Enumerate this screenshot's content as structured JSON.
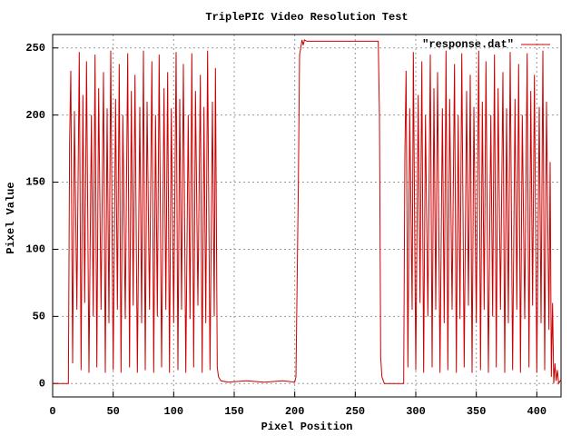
{
  "chart_data": {
    "type": "line",
    "title": "TriplePIC Video Resolution Test",
    "xlabel": "Pixel Position",
    "ylabel": "Pixel Value",
    "x": [
      0,
      13,
      14,
      15,
      16.5,
      18,
      20,
      22,
      23.5,
      25,
      26.5,
      28,
      30,
      32,
      33.5,
      35,
      36.5,
      38,
      40,
      42,
      43.5,
      45,
      46.5,
      48,
      50,
      52,
      53.5,
      55,
      56.5,
      58,
      60,
      62,
      63.5,
      65,
      66.5,
      68,
      70,
      72,
      73.5,
      75,
      76.5,
      78,
      80,
      82,
      83.5,
      85,
      86.5,
      88,
      90,
      92,
      93.5,
      95,
      96.5,
      98,
      100,
      102,
      103.5,
      105,
      106.5,
      108,
      110,
      112,
      113.5,
      115,
      116.5,
      118,
      120,
      122,
      123.5,
      125,
      126.5,
      128,
      130,
      132,
      133.5,
      134.5,
      136,
      137,
      139,
      145,
      160,
      175,
      190,
      200,
      201,
      203,
      204,
      205,
      206,
      207,
      208,
      210,
      269,
      270,
      271,
      272,
      274,
      290,
      291,
      292,
      293.5,
      295,
      297,
      298,
      300,
      302,
      303.5,
      305,
      306.5,
      308,
      310,
      312,
      313.5,
      315,
      316.5,
      318,
      320,
      322,
      323.5,
      325,
      326.5,
      328,
      330,
      332,
      333.5,
      335,
      336.5,
      338,
      340,
      342,
      343.5,
      345,
      346.5,
      348,
      350,
      352,
      353.5,
      355,
      356.5,
      358,
      360,
      362,
      363.5,
      365,
      366.5,
      368,
      370,
      372,
      373.5,
      375,
      376.5,
      378,
      380,
      382,
      383.5,
      385,
      386.5,
      388,
      390,
      392,
      393.5,
      395,
      396.5,
      398,
      400,
      402,
      403.5,
      405,
      406.5,
      408,
      410,
      411,
      412,
      413,
      414,
      415,
      416,
      417,
      418,
      420
    ],
    "series": [
      {
        "name": "\"response.dat\"",
        "color": "#cc0000",
        "values": [
          0,
          0,
          180,
          233,
          15,
          203,
          55,
          247,
          10,
          215,
          60,
          240,
          8,
          200,
          50,
          245,
          12,
          220,
          55,
          232,
          8,
          205,
          45,
          248,
          10,
          212,
          55,
          238,
          8,
          200,
          48,
          246,
          12,
          218,
          58,
          230,
          8,
          206,
          45,
          248,
          10,
          210,
          55,
          240,
          8,
          200,
          50,
          245,
          12,
          220,
          55,
          232,
          8,
          205,
          45,
          247,
          10,
          212,
          55,
          238,
          8,
          200,
          48,
          246,
          12,
          218,
          58,
          230,
          8,
          206,
          45,
          248,
          10,
          210,
          50,
          235,
          12,
          5,
          2,
          1,
          2,
          1,
          2,
          1,
          5,
          150,
          245,
          250,
          256,
          252,
          256,
          255,
          255,
          200,
          20,
          5,
          0,
          0,
          170,
          233,
          12,
          205,
          55,
          247,
          10,
          215,
          60,
          240,
          8,
          200,
          50,
          245,
          12,
          220,
          55,
          232,
          8,
          205,
          45,
          248,
          10,
          212,
          55,
          238,
          8,
          200,
          48,
          246,
          12,
          218,
          58,
          230,
          8,
          206,
          45,
          248,
          10,
          210,
          55,
          240,
          8,
          200,
          50,
          245,
          12,
          220,
          55,
          232,
          8,
          205,
          45,
          247,
          10,
          212,
          55,
          238,
          8,
          200,
          48,
          246,
          12,
          218,
          58,
          230,
          8,
          206,
          45,
          248,
          10,
          210,
          40,
          165,
          5,
          60,
          0,
          15,
          2,
          10,
          0,
          3
        ]
      }
    ],
    "xlim": [
      0,
      420
    ],
    "ylim": [
      -10,
      260
    ],
    "xticks": [
      0,
      50,
      100,
      150,
      200,
      250,
      300,
      350,
      400
    ],
    "yticks": [
      0,
      50,
      100,
      150,
      200,
      250
    ],
    "grid": true,
    "legend": "top-right"
  }
}
